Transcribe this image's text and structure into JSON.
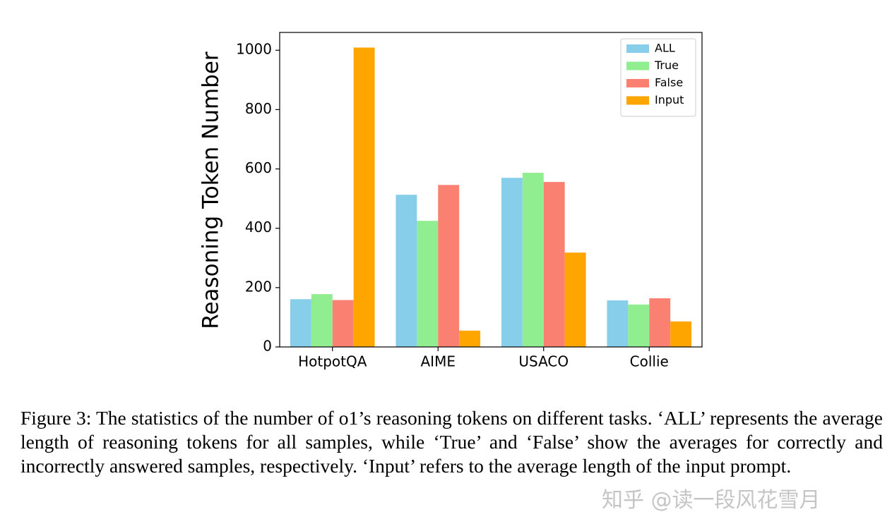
{
  "chart_data": {
    "type": "bar",
    "ylabel": "Reasoning Token Number",
    "categories": [
      "HotpotQA",
      "AIME",
      "USACO",
      "Collie"
    ],
    "series": [
      {
        "name": "ALL",
        "color": "#87ceeb",
        "values": [
          161,
          513,
          570,
          157
        ]
      },
      {
        "name": "True",
        "color": "#90ee90",
        "values": [
          178,
          425,
          587,
          143
        ]
      },
      {
        "name": "False",
        "color": "#fa8072",
        "values": [
          158,
          546,
          556,
          164
        ]
      },
      {
        "name": "Input",
        "color": "#ffa500",
        "values": [
          1009,
          55,
          318,
          86
        ]
      }
    ],
    "ylim": [
      0,
      1060
    ],
    "yticks": [
      0,
      200,
      400,
      600,
      800,
      1000
    ],
    "legend": "upper right",
    "caption": "Figure 3:  The statistics of the number of o1’s reasoning tokens on different tasks. ‘ALL’ represents the average length of reasoning tokens for all samples, while ‘True’ and ‘False’ show the averages for correctly and incorrectly answered samples, respectively. ‘Input’ refers to the average length of the input prompt.",
    "watermark": "知乎 @读一段风花雪月"
  }
}
